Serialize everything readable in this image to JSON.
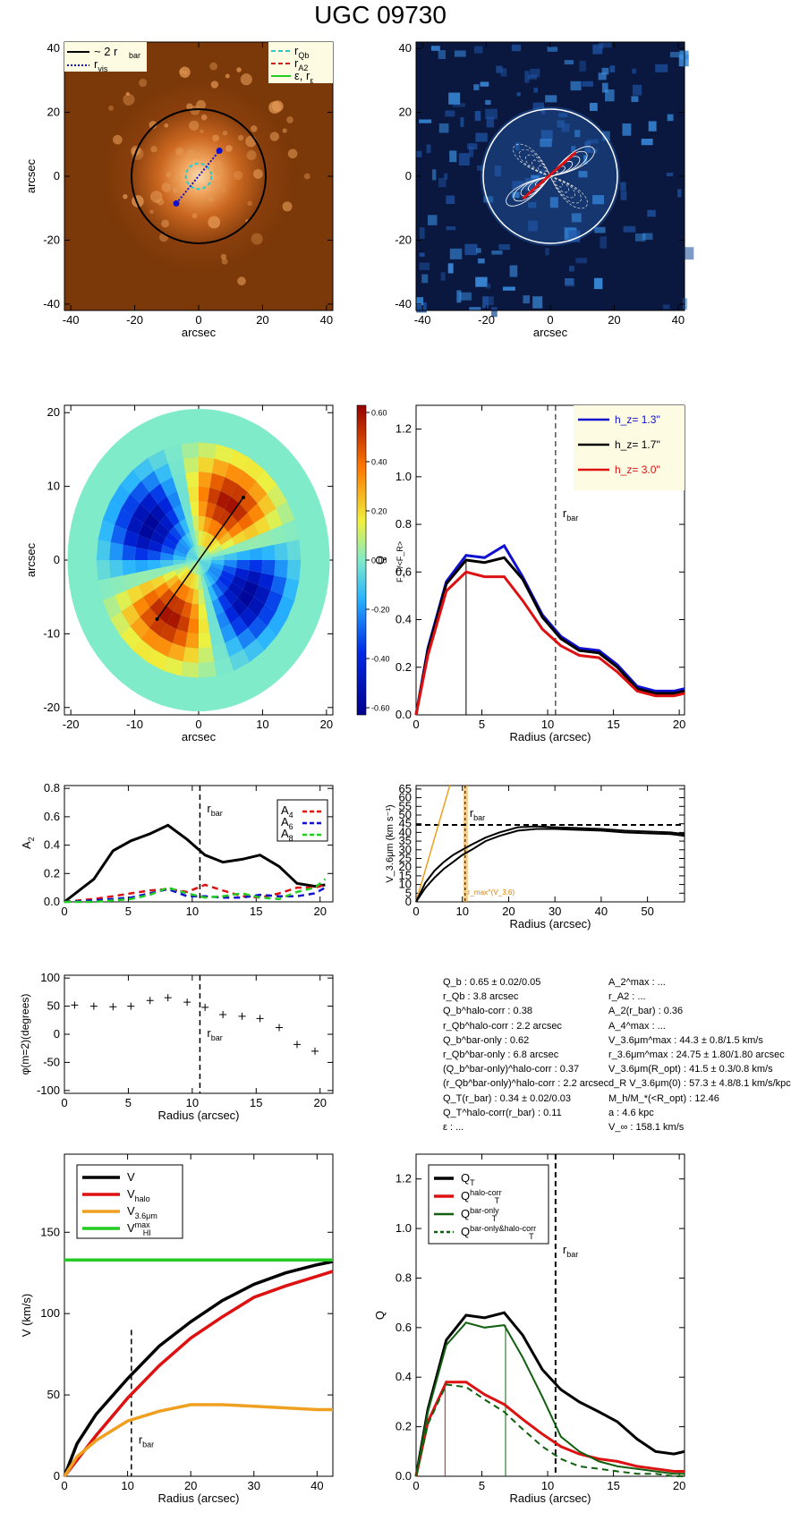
{
  "page": {
    "title": "UGC 09730"
  },
  "colors": {
    "blue": "#1010d0",
    "red": "#dd1111",
    "green": "#22cc22",
    "orange": "#f0a020",
    "cyan": "#22cccc",
    "darkgreen": "#106010"
  },
  "chart_data": [
    {
      "id": "p1",
      "type": "image",
      "xlabel": "arcsec",
      "ylabel": "arcsec",
      "xlim": [
        -42,
        42
      ],
      "ylim": [
        -42,
        42
      ],
      "xticks": [
        -40,
        -20,
        0,
        20,
        40
      ],
      "yticks": [
        -40,
        -20,
        0,
        20,
        40
      ],
      "legend_left": [
        "~ 2 r_bar",
        "r_vis"
      ],
      "legend_right": [
        "r_Qb",
        "r_A2",
        "ε, r_ε"
      ],
      "circle_radius": 21,
      "bar_endpoints": [
        [
          -7,
          -8.5
        ],
        [
          6.5,
          8
        ]
      ],
      "qb_circle_radius": 4
    },
    {
      "id": "p2",
      "type": "image",
      "xlabel": "arcsec",
      "ylabel": "",
      "xlim": [
        -42,
        42
      ],
      "ylim": [
        -42,
        42
      ],
      "xticks": [
        -40,
        -20,
        0,
        20,
        40
      ],
      "yticks": [
        -40,
        -20,
        0,
        20,
        40
      ]
    },
    {
      "id": "p3",
      "type": "heatmap",
      "xlabel": "arcsec",
      "ylabel": "arcsec",
      "xlim": [
        -21,
        21
      ],
      "ylim": [
        -21,
        21
      ],
      "xticks": [
        -20,
        -10,
        0,
        10,
        20
      ],
      "yticks": [
        -20,
        -10,
        0,
        10,
        20
      ],
      "colorbar_ticks": [
        "0.60",
        "0.40",
        "0.20",
        "0.00",
        "-0.20",
        "-0.40",
        "-0.60"
      ],
      "colorbar_label": "F_T/<F_R>",
      "bar_endpoints": [
        [
          -6.5,
          -8
        ],
        [
          7,
          8.5
        ]
      ]
    },
    {
      "id": "p4",
      "type": "line",
      "xlabel": "Radius (arcsec)",
      "ylabel": "Q_T",
      "xlim": [
        0,
        20.4
      ],
      "ylim": [
        0,
        1.3
      ],
      "xticks": [
        0,
        5,
        10,
        15,
        20
      ],
      "yticks": [
        0.0,
        0.2,
        0.4,
        0.6,
        0.8,
        1.0,
        1.2
      ],
      "x": [
        0,
        0.9,
        2.3,
        3.8,
        5.2,
        6.7,
        8.1,
        9.6,
        11.0,
        12.4,
        13.9,
        15.3,
        16.8,
        18.2,
        19.6,
        20.4
      ],
      "series": [
        {
          "name": "h_z= 1.3''",
          "color": "#1010d0",
          "values": [
            0,
            0.28,
            0.56,
            0.67,
            0.66,
            0.71,
            0.58,
            0.42,
            0.33,
            0.28,
            0.27,
            0.21,
            0.12,
            0.1,
            0.1,
            0.11
          ]
        },
        {
          "name": "h_z= 1.7''",
          "color": "#000000",
          "values": [
            0,
            0.27,
            0.55,
            0.65,
            0.64,
            0.66,
            0.57,
            0.41,
            0.32,
            0.27,
            0.26,
            0.2,
            0.11,
            0.09,
            0.09,
            0.1
          ]
        },
        {
          "name": "h_z= 3.0''",
          "color": "#dd1111",
          "values": [
            0,
            0.25,
            0.52,
            0.6,
            0.58,
            0.58,
            0.48,
            0.36,
            0.29,
            0.25,
            0.24,
            0.18,
            0.1,
            0.08,
            0.08,
            0.09
          ]
        }
      ],
      "rbar": 10.6,
      "qb_radius": 3.8,
      "rbar_label": "r_bar"
    },
    {
      "id": "p5",
      "type": "line",
      "xlabel": "",
      "ylabel": "A_2",
      "xlim": [
        0,
        21
      ],
      "ylim": [
        0,
        0.82
      ],
      "xticks": [
        0,
        5,
        10,
        15,
        20
      ],
      "yticks": [
        0.0,
        0.2,
        0.4,
        0.6,
        0.8
      ],
      "x": [
        0,
        2.3,
        3.8,
        5.2,
        6.7,
        8.1,
        9.6,
        11.0,
        12.4,
        13.9,
        15.3,
        16.8,
        18.2,
        19.6,
        20.4
      ],
      "series": [
        {
          "name": "A_2",
          "color": "#000000",
          "values": [
            0,
            0.16,
            0.36,
            0.43,
            0.48,
            0.54,
            0.44,
            0.33,
            0.28,
            0.3,
            0.33,
            0.25,
            0.13,
            0.11,
            0.12
          ]
        },
        {
          "name": "A_4",
          "color": "#dd1111",
          "dashed": true,
          "values": [
            0,
            0.02,
            0.04,
            0.06,
            0.08,
            0.09,
            0.07,
            0.12,
            0.08,
            0.04,
            0.03,
            0.06,
            0.1,
            0.1,
            0.12
          ]
        },
        {
          "name": "A_6",
          "color": "#1010d0",
          "dashed": true,
          "values": [
            0,
            0.01,
            0.02,
            0.03,
            0.06,
            0.09,
            0.04,
            0.04,
            0.03,
            0.03,
            0.05,
            0.04,
            0.04,
            0.06,
            0.1
          ]
        },
        {
          "name": "A_8",
          "color": "#22cc22",
          "dashed": true,
          "values": [
            0,
            0.0,
            0.01,
            0.02,
            0.05,
            0.1,
            0.06,
            0.03,
            0.04,
            0.06,
            0.03,
            0.02,
            0.07,
            0.1,
            0.16
          ]
        }
      ],
      "rbar": 10.6,
      "rbar_label": "r_bar",
      "legend": [
        "A_4",
        "A_6",
        "A_8"
      ]
    },
    {
      "id": "p6",
      "type": "line",
      "xlabel": "Radius (arcsec)",
      "ylabel": "V_3.6μm (km s⁻¹)",
      "xlim": [
        0,
        58
      ],
      "ylim": [
        0,
        67
      ],
      "xticks": [
        0,
        10,
        20,
        30,
        40,
        50
      ],
      "yticks": [
        0,
        5,
        10,
        15,
        20,
        25,
        30,
        35,
        40,
        45,
        50,
        55,
        60,
        65
      ],
      "x": [
        0,
        2,
        4,
        6,
        8,
        10,
        12,
        15,
        18,
        22,
        26,
        30,
        35,
        40,
        45,
        50,
        55,
        58
      ],
      "series": [
        {
          "name": "V_3.6μm",
          "color": "#000000",
          "values": [
            0,
            11,
            18,
            23,
            27,
            30,
            33,
            37,
            40,
            43,
            43.5,
            43,
            42.5,
            42,
            41,
            40.5,
            40,
            39
          ]
        },
        {
          "name": "V_3.6μm lower",
          "color": "#000000",
          "values": [
            0,
            8,
            14,
            19,
            23,
            27,
            30,
            35,
            38,
            41,
            42,
            42,
            41.5,
            41,
            40,
            39.5,
            39,
            38
          ]
        }
      ],
      "vmax_line": 44.3,
      "rbar": 10.6,
      "rbar_label": "r_bar",
      "rmax_label": "r_max^(V_3.6)",
      "rise_slope": 9.2
    },
    {
      "id": "p7",
      "type": "scatter",
      "xlabel": "Radius (arcsec)",
      "ylabel": "φ(m=2)(degrees)",
      "xlim": [
        0,
        21
      ],
      "ylim": [
        -105,
        105
      ],
      "xticks": [
        0,
        5,
        10,
        15,
        20
      ],
      "yticks": [
        -100,
        -50,
        0,
        50,
        100
      ],
      "x": [
        0.8,
        2.3,
        3.8,
        5.2,
        6.7,
        8.1,
        9.6,
        11.0,
        12.4,
        13.9,
        15.3,
        16.8,
        18.2,
        19.6
      ],
      "values": [
        52,
        50,
        49,
        50,
        60,
        65,
        57,
        48,
        35,
        32,
        28,
        12,
        -18,
        -30
      ],
      "rbar": 10.6,
      "rbar_label": "r_bar"
    },
    {
      "id": "p8",
      "type": "line",
      "xlabel": "Radius (arcsec)",
      "ylabel": "V (km/s)",
      "xlim": [
        0,
        42.5
      ],
      "ylim": [
        0,
        198
      ],
      "xticks": [
        0,
        10,
        20,
        30,
        40
      ],
      "yticks": [
        0,
        50,
        100,
        150
      ],
      "x": [
        0,
        2,
        5,
        10,
        15,
        20,
        25,
        30,
        35,
        40,
        42.5
      ],
      "series": [
        {
          "name": "V",
          "color": "#000000",
          "values": [
            0,
            20,
            38,
            60,
            80,
            95,
            108,
            118,
            125,
            130,
            132
          ]
        },
        {
          "name": "V_halo",
          "color": "#dd1111",
          "values": [
            0,
            10,
            25,
            48,
            68,
            85,
            98,
            110,
            117,
            123,
            126
          ]
        },
        {
          "name": "V_3.6μm",
          "color": "#f0a020",
          "values": [
            0,
            12,
            22,
            34,
            40,
            44,
            44,
            43,
            42,
            41,
            41
          ]
        },
        {
          "name": "V_HI^max",
          "color": "#22cc22",
          "values": [
            133,
            133,
            133,
            133,
            133,
            133,
            133,
            133,
            133,
            133,
            133
          ]
        }
      ],
      "rbar": 10.6,
      "rbar_label": "r_bar"
    },
    {
      "id": "p9",
      "type": "line",
      "xlabel": "Radius (arcsec)",
      "ylabel": "Q_T",
      "xlim": [
        0,
        20.4
      ],
      "ylim": [
        0,
        1.3
      ],
      "xticks": [
        0,
        5,
        10,
        15,
        20
      ],
      "yticks": [
        0.0,
        0.2,
        0.4,
        0.6,
        0.8,
        1.0,
        1.2
      ],
      "x": [
        0,
        0.9,
        2.3,
        3.8,
        5.2,
        6.7,
        8.1,
        9.6,
        11.0,
        12.4,
        13.9,
        15.3,
        16.8,
        18.2,
        19.6,
        20.4
      ],
      "series": [
        {
          "name": "Q_T",
          "color": "#000000",
          "width": 3,
          "values": [
            0,
            0.27,
            0.55,
            0.65,
            0.64,
            0.66,
            0.57,
            0.43,
            0.35,
            0.3,
            0.26,
            0.22,
            0.15,
            0.1,
            0.09,
            0.1
          ]
        },
        {
          "name": "Q_T^halo-corr",
          "color": "#dd1111",
          "width": 3,
          "values": [
            0,
            0.22,
            0.38,
            0.38,
            0.33,
            0.29,
            0.23,
            0.17,
            0.12,
            0.09,
            0.07,
            0.06,
            0.04,
            0.03,
            0.02,
            0.02
          ]
        },
        {
          "name": "Q_T^bar-only",
          "color": "#106010",
          "width": 2,
          "values": [
            0,
            0.26,
            0.53,
            0.62,
            0.6,
            0.61,
            0.48,
            0.32,
            0.16,
            0.1,
            0.06,
            0.04,
            0.03,
            0.02,
            0.01,
            0.01
          ]
        },
        {
          "name": "Q_T^bar-only&halo-corr",
          "color": "#106010",
          "width": 2,
          "dashed": true,
          "values": [
            0,
            0.21,
            0.37,
            0.36,
            0.31,
            0.26,
            0.19,
            0.12,
            0.07,
            0.04,
            0.03,
            0.02,
            0.01,
            0.01,
            0.0,
            0.0
          ]
        }
      ],
      "rbar": 10.6,
      "rbar_label": "r_bar",
      "vlines": [
        {
          "x": 2.2,
          "color": "#dd1111"
        },
        {
          "x": 6.8,
          "color": "#106010"
        }
      ]
    }
  ],
  "info": {
    "left": [
      "Q_b :  0.65 ± 0.02/0.05",
      "r_Qb :   3.8   arcsec",
      "Q_b^halo-corr :  0.38",
      "r_Qb^halo-corr :   2.2 arcsec",
      "Q_b^bar-only :   0.62",
      "r_Qb^bar-only :   6.8 arcsec",
      "(Q_b^bar-only)^halo-corr :  0.37",
      "(r_Qb^bar-only)^halo-corr :     2.2 arcsec",
      "Q_T(r_bar) :  0.34 ± 0.02/0.03",
      "Q_T^halo-corr(r_bar) :  0.11",
      "ε : ..."
    ],
    "right": [
      "A_2^max : ...",
      "r_A2 : ...",
      "A_2(r_bar) :  0.36",
      "A_4^max : ...",
      "V_3.6μm^max :  44.3 ± 0.8/1.5 km/s",
      "r_3.6μm^max :  24.75 ± 1.80/1.80 arcsec",
      "V_3.6μm(R_opt) :  41.5 ± 0.3/0.8 km/s",
      "d_R V_3.6μm(0) :  57.3 ± 4.8/8.1 km/s/kpc",
      "M_h/M_*(<R_opt) :  12.46",
      "a :   4.6 kpc",
      "V_∞ :  158.1 km/s"
    ]
  }
}
